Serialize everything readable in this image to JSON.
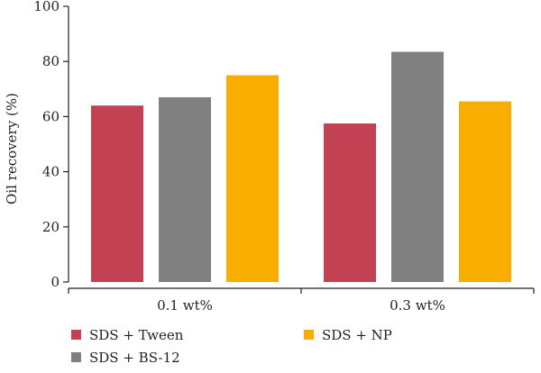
{
  "chart_data": {
    "type": "bar",
    "title": "",
    "xlabel": "",
    "ylabel": "Oil recovery (%)",
    "ylim": [
      0,
      100
    ],
    "yticks": [
      0,
      20,
      40,
      60,
      80,
      100
    ],
    "categories": [
      "0.1 wt%",
      "0.3 wt%"
    ],
    "series": [
      {
        "name": "SDS + Tween",
        "values": [
          64,
          57.5
        ],
        "color": "#c24152"
      },
      {
        "name": "SDS + BS-12",
        "values": [
          67,
          83.5
        ],
        "color": "#808080"
      },
      {
        "name": "SDS + NP",
        "values": [
          75,
          65.5
        ],
        "color": "#f8ad00"
      }
    ],
    "grid": false,
    "legend": {
      "position": "bottom"
    }
  }
}
